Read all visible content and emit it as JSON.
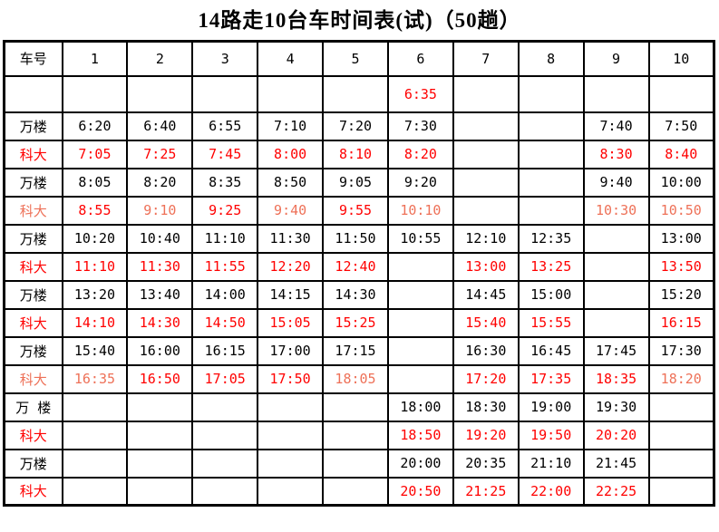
{
  "title": "14路走10台车时间表(试)（50趟）",
  "colors": {
    "text_black": "#000000",
    "text_red": "#FF0000",
    "text_lightred": "#EE7158",
    "border": "#000000",
    "background": "#FFFFFF"
  },
  "table": {
    "header": [
      "车号",
      "1",
      "2",
      "3",
      "4",
      "5",
      "6",
      "7",
      "8",
      "9",
      "10"
    ],
    "rows": [
      {
        "label": "",
        "label_color": "black",
        "tall": true,
        "cells": [
          {
            "t": "",
            "c": ""
          },
          {
            "t": "",
            "c": ""
          },
          {
            "t": "",
            "c": ""
          },
          {
            "t": "",
            "c": ""
          },
          {
            "t": "",
            "c": ""
          },
          {
            "t": "6:35",
            "c": "red"
          },
          {
            "t": "",
            "c": ""
          },
          {
            "t": "",
            "c": ""
          },
          {
            "t": "",
            "c": ""
          },
          {
            "t": "",
            "c": ""
          }
        ]
      },
      {
        "label": "万楼",
        "label_color": "black",
        "tall": false,
        "cells": [
          {
            "t": "6:20",
            "c": "black"
          },
          {
            "t": "6:40",
            "c": "black"
          },
          {
            "t": "6:55",
            "c": "black"
          },
          {
            "t": "7:10",
            "c": "black"
          },
          {
            "t": "7:20",
            "c": "black"
          },
          {
            "t": "7:30",
            "c": "black"
          },
          {
            "t": "",
            "c": ""
          },
          {
            "t": "",
            "c": ""
          },
          {
            "t": "7:40",
            "c": "black"
          },
          {
            "t": "7:50",
            "c": "black"
          }
        ]
      },
      {
        "label": "科大",
        "label_color": "red",
        "tall": false,
        "cells": [
          {
            "t": "7:05",
            "c": "red"
          },
          {
            "t": "7:25",
            "c": "red"
          },
          {
            "t": "7:45",
            "c": "red"
          },
          {
            "t": "8:00",
            "c": "red"
          },
          {
            "t": "8:10",
            "c": "red"
          },
          {
            "t": "8:20",
            "c": "red"
          },
          {
            "t": "",
            "c": ""
          },
          {
            "t": "",
            "c": ""
          },
          {
            "t": "8:30",
            "c": "red"
          },
          {
            "t": "8:40",
            "c": "red"
          }
        ]
      },
      {
        "label": "万楼",
        "label_color": "black",
        "tall": false,
        "cells": [
          {
            "t": "8:05",
            "c": "black"
          },
          {
            "t": "8:20",
            "c": "black"
          },
          {
            "t": "8:35",
            "c": "black"
          },
          {
            "t": "8:50",
            "c": "black"
          },
          {
            "t": "9:05",
            "c": "black"
          },
          {
            "t": "9:20",
            "c": "black"
          },
          {
            "t": "",
            "c": ""
          },
          {
            "t": "",
            "c": ""
          },
          {
            "t": "9:40",
            "c": "black"
          },
          {
            "t": "10:00",
            "c": "black"
          }
        ]
      },
      {
        "label": "科大",
        "label_color": "lightred",
        "tall": false,
        "cells": [
          {
            "t": "8:55",
            "c": "red"
          },
          {
            "t": "9:10",
            "c": "lightred"
          },
          {
            "t": "9:25",
            "c": "red"
          },
          {
            "t": "9:40",
            "c": "lightred"
          },
          {
            "t": "9:55",
            "c": "red"
          },
          {
            "t": "10:10",
            "c": "lightred"
          },
          {
            "t": "",
            "c": ""
          },
          {
            "t": "",
            "c": ""
          },
          {
            "t": "10:30",
            "c": "lightred"
          },
          {
            "t": "10:50",
            "c": "lightred"
          }
        ]
      },
      {
        "label": "万楼",
        "label_color": "black",
        "tall": false,
        "cells": [
          {
            "t": "10:20",
            "c": "black"
          },
          {
            "t": "10:40",
            "c": "black"
          },
          {
            "t": "11:10",
            "c": "black"
          },
          {
            "t": "11:30",
            "c": "black"
          },
          {
            "t": "11:50",
            "c": "black"
          },
          {
            "t": "10:55",
            "c": "black"
          },
          {
            "t": "12:10",
            "c": "black"
          },
          {
            "t": "12:35",
            "c": "black"
          },
          {
            "t": "",
            "c": ""
          },
          {
            "t": "13:00",
            "c": "black"
          }
        ]
      },
      {
        "label": "科大",
        "label_color": "red",
        "tall": false,
        "cells": [
          {
            "t": "11:10",
            "c": "red"
          },
          {
            "t": "11:30",
            "c": "red"
          },
          {
            "t": "11:55",
            "c": "red"
          },
          {
            "t": "12:20",
            "c": "red"
          },
          {
            "t": "12:40",
            "c": "red"
          },
          {
            "t": "",
            "c": ""
          },
          {
            "t": "13:00",
            "c": "red"
          },
          {
            "t": "13:25",
            "c": "red"
          },
          {
            "t": "",
            "c": ""
          },
          {
            "t": "13:50",
            "c": "red"
          }
        ]
      },
      {
        "label": "万楼",
        "label_color": "black",
        "tall": false,
        "cells": [
          {
            "t": "13:20",
            "c": "black"
          },
          {
            "t": "13:40",
            "c": "black"
          },
          {
            "t": "14:00",
            "c": "black"
          },
          {
            "t": "14:15",
            "c": "black"
          },
          {
            "t": "14:30",
            "c": "black"
          },
          {
            "t": "",
            "c": ""
          },
          {
            "t": "14:45",
            "c": "black"
          },
          {
            "t": "15:00",
            "c": "black"
          },
          {
            "t": "",
            "c": ""
          },
          {
            "t": "15:20",
            "c": "black"
          }
        ]
      },
      {
        "label": "科大",
        "label_color": "red",
        "tall": false,
        "cells": [
          {
            "t": "14:10",
            "c": "red"
          },
          {
            "t": "14:30",
            "c": "red"
          },
          {
            "t": "14:50",
            "c": "red"
          },
          {
            "t": "15:05",
            "c": "red"
          },
          {
            "t": "15:25",
            "c": "red"
          },
          {
            "t": "",
            "c": ""
          },
          {
            "t": "15:40",
            "c": "red"
          },
          {
            "t": "15:55",
            "c": "red"
          },
          {
            "t": "",
            "c": ""
          },
          {
            "t": "16:15",
            "c": "red"
          }
        ]
      },
      {
        "label": "万楼",
        "label_color": "black",
        "tall": false,
        "cells": [
          {
            "t": "15:40",
            "c": "black"
          },
          {
            "t": "16:00",
            "c": "black"
          },
          {
            "t": "16:15",
            "c": "black"
          },
          {
            "t": "17:00",
            "c": "black"
          },
          {
            "t": "17:15",
            "c": "black"
          },
          {
            "t": "",
            "c": ""
          },
          {
            "t": "16:30",
            "c": "black"
          },
          {
            "t": "16:45",
            "c": "black"
          },
          {
            "t": "17:45",
            "c": "black"
          },
          {
            "t": "17:30",
            "c": "black"
          }
        ]
      },
      {
        "label": "科大",
        "label_color": "lightred",
        "tall": false,
        "cells": [
          {
            "t": "16:35",
            "c": "lightred"
          },
          {
            "t": "16:50",
            "c": "red"
          },
          {
            "t": "17:05",
            "c": "red"
          },
          {
            "t": "17:50",
            "c": "red"
          },
          {
            "t": "18:05",
            "c": "lightred"
          },
          {
            "t": "",
            "c": ""
          },
          {
            "t": "17:20",
            "c": "red"
          },
          {
            "t": "17:35",
            "c": "red"
          },
          {
            "t": "18:35",
            "c": "red"
          },
          {
            "t": "18:20",
            "c": "lightred"
          }
        ]
      },
      {
        "label": "万 楼",
        "label_color": "black",
        "tall": false,
        "cells": [
          {
            "t": "",
            "c": ""
          },
          {
            "t": "",
            "c": ""
          },
          {
            "t": "",
            "c": ""
          },
          {
            "t": "",
            "c": ""
          },
          {
            "t": "",
            "c": ""
          },
          {
            "t": "18:00",
            "c": "black"
          },
          {
            "t": "18:30",
            "c": "black"
          },
          {
            "t": "19:00",
            "c": "black"
          },
          {
            "t": "19:30",
            "c": "black"
          },
          {
            "t": "",
            "c": ""
          }
        ]
      },
      {
        "label": "科大",
        "label_color": "red",
        "tall": false,
        "cells": [
          {
            "t": "",
            "c": ""
          },
          {
            "t": "",
            "c": ""
          },
          {
            "t": "",
            "c": ""
          },
          {
            "t": "",
            "c": ""
          },
          {
            "t": "",
            "c": ""
          },
          {
            "t": "18:50",
            "c": "red"
          },
          {
            "t": "19:20",
            "c": "red"
          },
          {
            "t": "19:50",
            "c": "red"
          },
          {
            "t": "20:20",
            "c": "red"
          },
          {
            "t": "",
            "c": ""
          }
        ]
      },
      {
        "label": "万楼",
        "label_color": "black",
        "tall": false,
        "cells": [
          {
            "t": "",
            "c": ""
          },
          {
            "t": "",
            "c": ""
          },
          {
            "t": "",
            "c": ""
          },
          {
            "t": "",
            "c": ""
          },
          {
            "t": "",
            "c": ""
          },
          {
            "t": "20:00",
            "c": "black"
          },
          {
            "t": "20:35",
            "c": "black"
          },
          {
            "t": "21:10",
            "c": "black"
          },
          {
            "t": "21:45",
            "c": "black"
          },
          {
            "t": "",
            "c": ""
          }
        ]
      },
      {
        "label": "科大",
        "label_color": "red",
        "tall": false,
        "cells": [
          {
            "t": "",
            "c": ""
          },
          {
            "t": "",
            "c": ""
          },
          {
            "t": "",
            "c": ""
          },
          {
            "t": "",
            "c": ""
          },
          {
            "t": "",
            "c": ""
          },
          {
            "t": "20:50",
            "c": "red"
          },
          {
            "t": "21:25",
            "c": "red"
          },
          {
            "t": "22:00",
            "c": "red"
          },
          {
            "t": "22:25",
            "c": "red"
          },
          {
            "t": "",
            "c": ""
          }
        ]
      }
    ]
  }
}
